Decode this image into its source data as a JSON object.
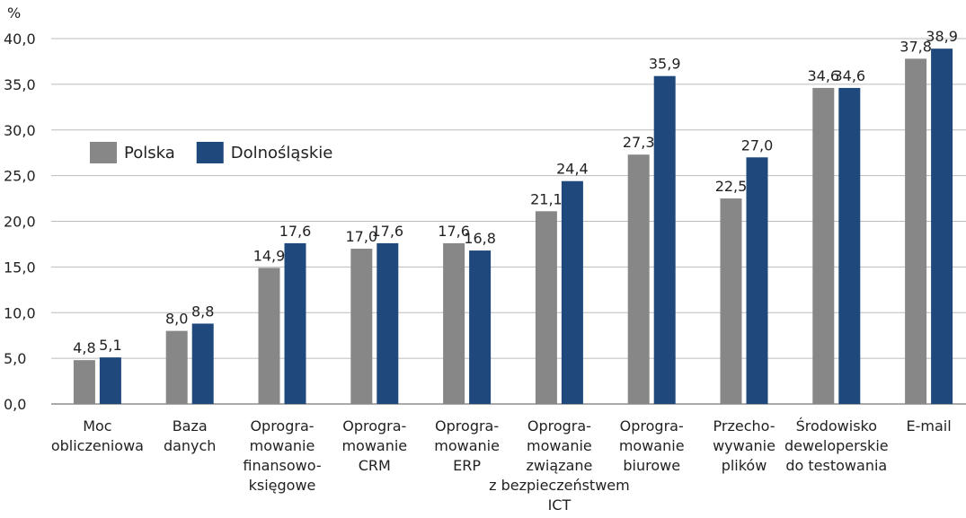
{
  "chart_data": {
    "type": "bar",
    "y_label": "%",
    "categories": [
      "Moc\nobliczeniowa",
      "Baza\ndanych",
      "Oprogra-\nmowanie\nfinansowo-\nksięgowe",
      "Oprogra-\nmowanie\nCRM",
      "Oprogra-\nmowanie\nERP",
      "Oprogra-\nmowanie\nzwiązane\nz bezpieczeństwem\nICT",
      "Oprogra-\nmowanie\nbiurowe",
      "Przecho-\nwywanie\nplików",
      "Środowisko\ndeweloperskie\ndo testowania",
      "E-mail"
    ],
    "series": [
      {
        "name": "Polska",
        "color": "#878787",
        "values": [
          4.8,
          8.0,
          14.9,
          17.0,
          17.6,
          21.1,
          27.3,
          22.5,
          34.6,
          37.8
        ],
        "value_labels": [
          "4,8",
          "8,0",
          "14,9",
          "17,0",
          "17,6",
          "21,1",
          "27,3",
          "22,5",
          "34,6",
          "37,8"
        ]
      },
      {
        "name": "Dolnośląskie",
        "color": "#1f497d",
        "values": [
          5.1,
          8.8,
          17.6,
          17.6,
          16.8,
          24.4,
          35.9,
          27.0,
          34.6,
          38.9
        ],
        "value_labels": [
          "5,1",
          "8,8",
          "17,6",
          "17,6",
          "16,8",
          "24,4",
          "35,9",
          "27,0",
          "34,6",
          "38,9"
        ]
      }
    ],
    "ylim": [
      0,
      40
    ],
    "yticks": [
      {
        "value": 0,
        "label": "0,0"
      },
      {
        "value": 5,
        "label": "5,0"
      },
      {
        "value": 10,
        "label": "10,0"
      },
      {
        "value": 15,
        "label": "15,0"
      },
      {
        "value": 20,
        "label": "20,0"
      },
      {
        "value": 25,
        "label": "25,0"
      },
      {
        "value": 30,
        "label": "30,0"
      },
      {
        "value": 35,
        "label": "35,0"
      },
      {
        "value": 40,
        "label": "40,0"
      }
    ],
    "grid": true,
    "legend": "upper left"
  }
}
